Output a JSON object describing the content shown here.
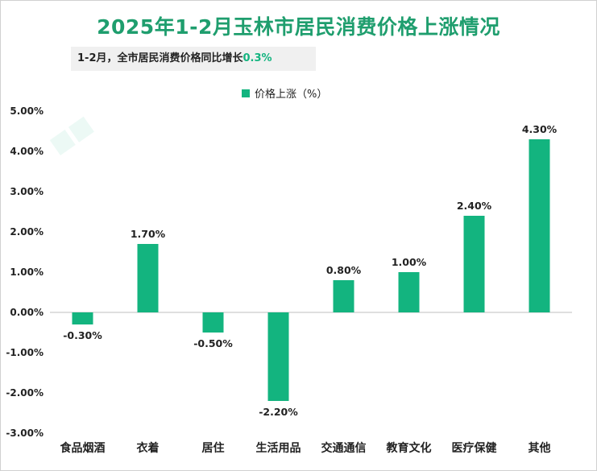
{
  "chart_data": {
    "type": "bar",
    "title": "2025年1-2月玉林市居民消费价格上涨情况",
    "subtitle_text": "1-2月，全市居民消费价格同比增长",
    "subtitle_value": "0.3%",
    "legend_label": "价格上涨（%）",
    "categories": [
      "食品烟酒",
      "衣着",
      "居住",
      "生活用品",
      "交通通信",
      "教育文化",
      "医疗保健",
      "其他"
    ],
    "values": [
      -0.3,
      1.7,
      -0.5,
      -2.2,
      0.8,
      1.0,
      2.4,
      4.3
    ],
    "value_labels": [
      "-0.30%",
      "1.70%",
      "-0.50%",
      "-2.20%",
      "0.80%",
      "1.00%",
      "2.40%",
      "4.30%"
    ],
    "ylim": [
      -3.0,
      5.0
    ],
    "yticks": [
      "5.00%",
      "4.00%",
      "3.00%",
      "2.00%",
      "1.00%",
      "0.00%",
      "-1.00%",
      "-2.00%",
      "-3.00%"
    ],
    "ytick_values": [
      5,
      4,
      3,
      2,
      1,
      0,
      -1,
      -2,
      -3
    ],
    "bar_color": "#13b47f",
    "title_color": "#1f9e6e",
    "grid": false,
    "legend_position": "top-center"
  }
}
